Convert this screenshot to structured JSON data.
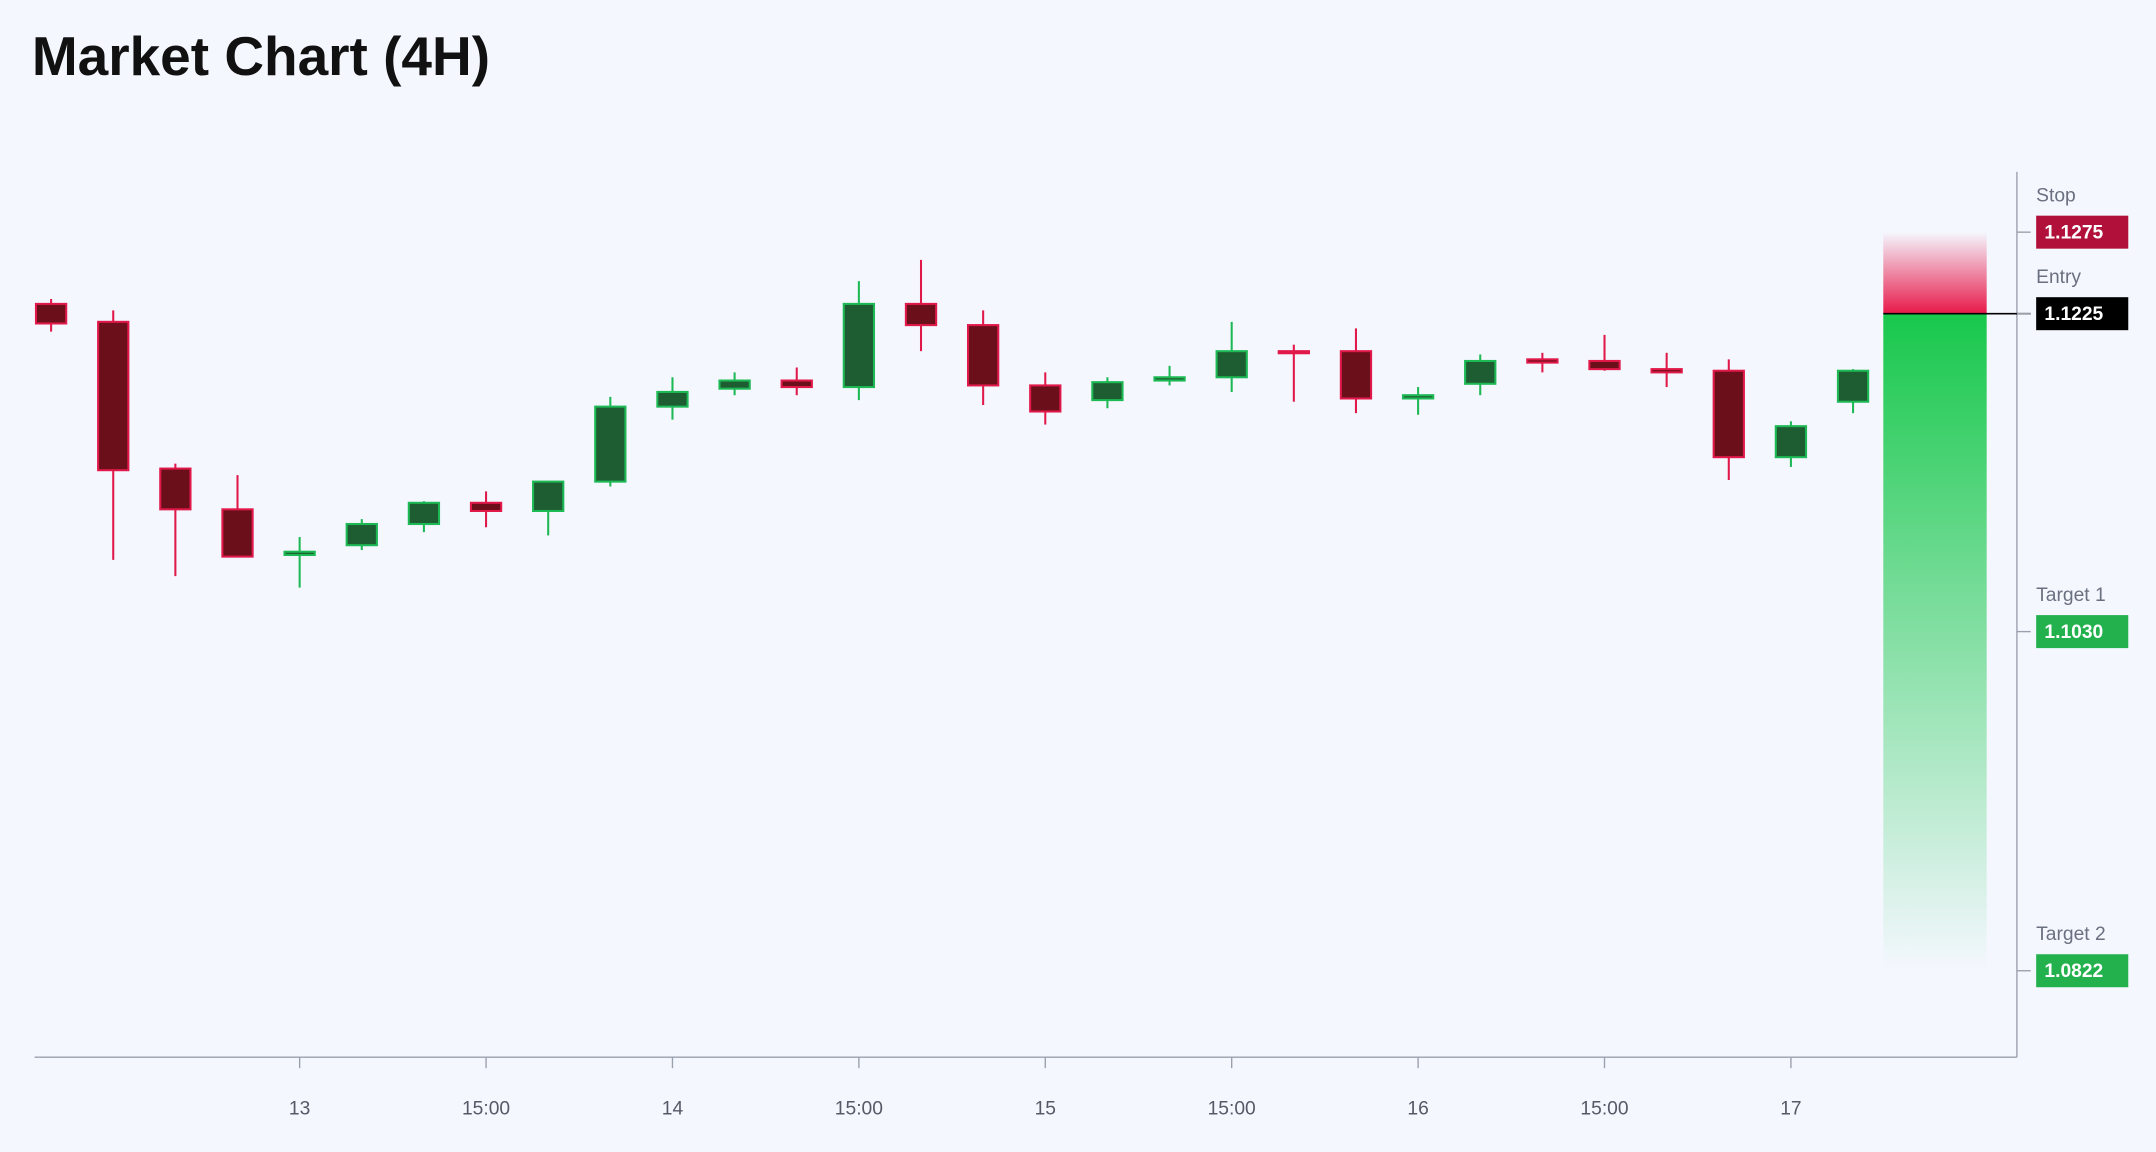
{
  "chart_data": {
    "type": "candlestick",
    "title": "Market Chart (4H)",
    "categories": [
      null,
      null,
      null,
      null,
      "13",
      null,
      null,
      "15:00",
      null,
      null,
      "14",
      null,
      null,
      "15:00",
      null,
      null,
      "15",
      null,
      null,
      "15:00",
      null,
      null,
      "16",
      null,
      null,
      "15:00",
      null,
      null,
      "17",
      null
    ],
    "open": [
      1.1231,
      1.122,
      1.113,
      1.1105,
      1.1077,
      1.1083,
      1.1096,
      1.1109,
      1.1104,
      1.1122,
      1.1168,
      1.1179,
      1.1184,
      1.118,
      1.1231,
      1.1218,
      1.1181,
      1.1172,
      1.1184,
      1.1186,
      1.1202,
      1.1202,
      1.1173,
      1.1182,
      1.1197,
      1.1196,
      1.1191,
      1.119,
      1.1137,
      1.1171
    ],
    "high": [
      1.1234,
      1.1227,
      1.1133,
      1.1126,
      1.1088,
      1.1099,
      1.111,
      1.1116,
      1.1122,
      1.1174,
      1.1186,
      1.1189,
      1.1192,
      1.1245,
      1.1258,
      1.1227,
      1.1189,
      1.1186,
      1.1193,
      1.122,
      1.1206,
      1.1216,
      1.118,
      1.12,
      1.1201,
      1.1212,
      1.1201,
      1.1197,
      1.1159,
      1.1191
    ],
    "low": [
      1.1214,
      1.1074,
      1.1064,
      1.1076,
      1.1057,
      1.108,
      1.1091,
      1.1094,
      1.1089,
      1.1119,
      1.116,
      1.1175,
      1.1175,
      1.1172,
      1.1202,
      1.1169,
      1.1157,
      1.1167,
      1.1181,
      1.1177,
      1.1171,
      1.1164,
      1.1163,
      1.1175,
      1.1189,
      1.119,
      1.118,
      1.1123,
      1.1131,
      1.1164
    ],
    "close": [
      1.1219,
      1.1129,
      1.1105,
      1.1076,
      1.1079,
      1.1096,
      1.1109,
      1.1104,
      1.1122,
      1.1168,
      1.1177,
      1.1184,
      1.118,
      1.1231,
      1.1218,
      1.1181,
      1.1165,
      1.1183,
      1.1186,
      1.1202,
      1.1201,
      1.1173,
      1.1175,
      1.1196,
      1.1195,
      1.1191,
      1.1189,
      1.1137,
      1.1156,
      1.119
    ],
    "up_color": "#1db954",
    "down_color": "#e0194a",
    "ylim": [
      1.0769,
      1.1312
    ],
    "levels": [
      {
        "name": "Stop",
        "value": 1.1275,
        "color": "#b0103a"
      },
      {
        "name": "Entry",
        "value": 1.1225,
        "color": "#000000"
      },
      {
        "name": "Target 1",
        "value": 1.103,
        "value_label": "1.1030",
        "color": "#22b14c"
      },
      {
        "name": "Target 2",
        "value": 1.0822,
        "color": "#22b14c"
      }
    ]
  }
}
